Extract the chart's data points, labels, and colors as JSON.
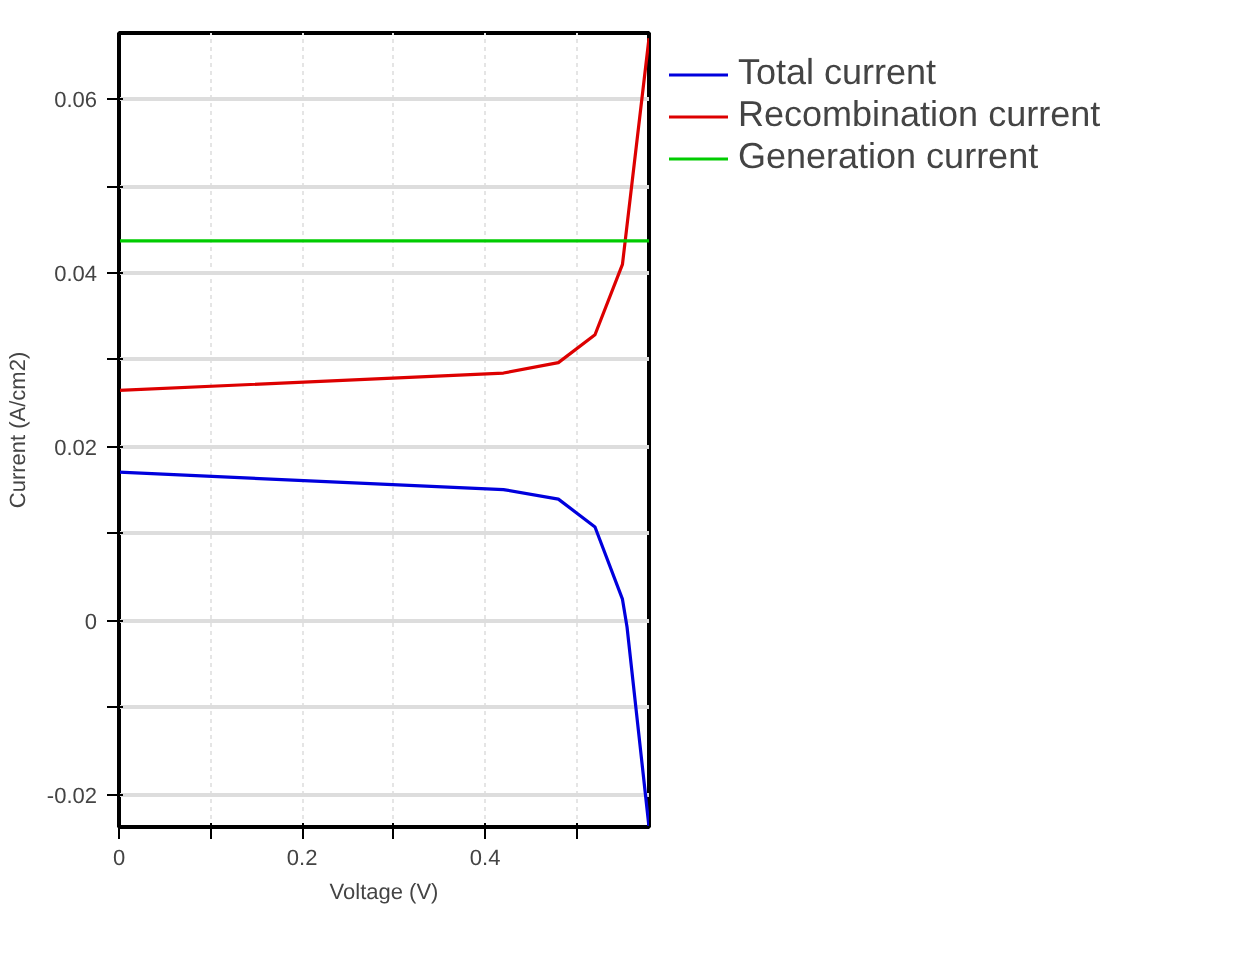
{
  "chart_data": {
    "type": "line",
    "xlabel": "Voltage (V)",
    "ylabel": "Current (A/cm2)",
    "xlim": [
      0,
      0.579
    ],
    "ylim": [
      -0.0237,
      0.0676
    ],
    "xticks": [
      0,
      {
        "value": 0.1,
        "label": null
      },
      0.2,
      {
        "value": 0.3,
        "label": null
      },
      0.4,
      {
        "value": 0.5,
        "label": null
      }
    ],
    "yticks": [
      {
        "value": -0.02,
        "label": "-0.02"
      },
      {
        "value": -0.01,
        "label": null
      },
      0,
      {
        "value": 0.01,
        "label": null
      },
      0.02,
      {
        "value": 0.03,
        "label": null
      },
      0.04,
      {
        "value": 0.05,
        "label": null
      },
      0.06
    ],
    "grid": true,
    "legend": "top right",
    "series": [
      {
        "name": "Total current",
        "color": "#0000dd",
        "x": [
          0,
          0.42,
          0.48,
          0.52,
          0.55,
          0.555,
          0.579
        ],
        "values": [
          0.0171,
          0.0151,
          0.014,
          0.0108,
          0.0025,
          -0.0007,
          -0.0237
        ]
      },
      {
        "name": "Recombination current",
        "color": "#dd0000",
        "x": [
          0,
          0.42,
          0.48,
          0.52,
          0.55,
          0.579
        ],
        "values": [
          0.0265,
          0.0285,
          0.0297,
          0.0329,
          0.041,
          0.067
        ]
      },
      {
        "name": "Generation current",
        "color": "#00cc00",
        "x": [
          0,
          0.579
        ],
        "values": [
          0.0437,
          0.0437
        ]
      }
    ]
  }
}
